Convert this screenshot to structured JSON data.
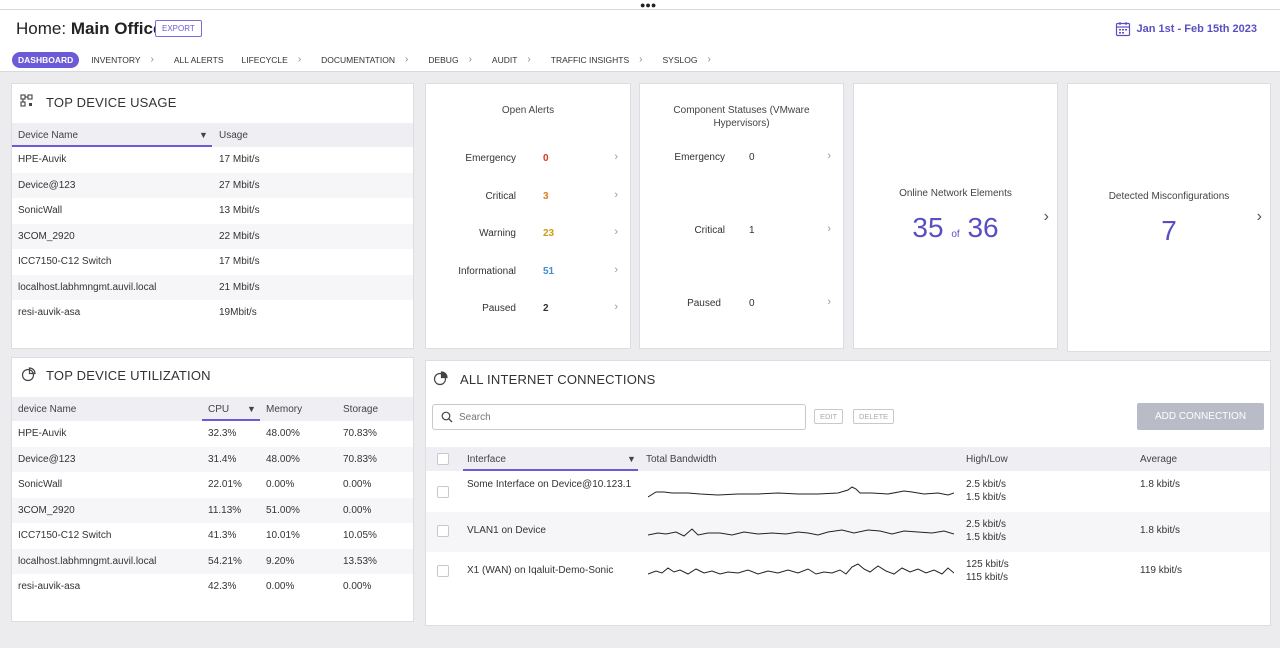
{
  "header": {
    "title_prefix": "Home:",
    "title_main": "Main Office",
    "export_label": "EXPORT",
    "date_range": "Jan 1st - Feb 15th 2023"
  },
  "nav": [
    {
      "label": "DASHBOARD",
      "active": true
    },
    {
      "label": "INVENTORY"
    },
    {
      "label": "ALL ALERTS"
    },
    {
      "label": "LIFECYCLE"
    },
    {
      "label": "DOCUMENTATION"
    },
    {
      "label": "DEBUG"
    },
    {
      "label": "AUDIT"
    },
    {
      "label": "TRAFFIC INSIGHTS"
    },
    {
      "label": "SYSLOG"
    }
  ],
  "top_device_usage": {
    "title": "TOP DEVICE USAGE",
    "col_device": "Device Name",
    "col_usage": "Usage",
    "rows": [
      {
        "device": "HPE-Auvik",
        "usage": "17 Mbit/s"
      },
      {
        "device": "Device@123",
        "usage": "27 Mbit/s"
      },
      {
        "device": "SonicWall",
        "usage": "13 Mbit/s"
      },
      {
        "device": "3COM_2920",
        "usage": "22 Mbit/s"
      },
      {
        "device": "ICC7150-C12 Switch",
        "usage": "17 Mbit/s"
      },
      {
        "device": "localhost.labhmngmt.auvil.local",
        "usage": "21 Mbit/s"
      },
      {
        "device": "resi-auvik-asa",
        "usage": "19Mbit/s"
      }
    ]
  },
  "top_device_utilization": {
    "title": "TOP DEVICE UTILIZATION",
    "col_device": "device Name",
    "col_cpu": "CPU",
    "col_memory": "Memory",
    "col_storage": "Storage",
    "rows": [
      {
        "device": "HPE-Auvik",
        "cpu": "32.3%",
        "memory": "48.00%",
        "storage": "70.83%"
      },
      {
        "device": "Device@123",
        "cpu": "31.4%",
        "memory": "48.00%",
        "storage": "70.83%"
      },
      {
        "device": "SonicWall",
        "cpu": "22.01%",
        "memory": "0.00%",
        "storage": "0.00%"
      },
      {
        "device": "3COM_2920",
        "cpu": "11.13%",
        "memory": "51.00%",
        "storage": "0.00%"
      },
      {
        "device": "ICC7150-C12 Switch",
        "cpu": "41.3%",
        "memory": "10.01%",
        "storage": "10.05%"
      },
      {
        "device": "localhost.labhmngmt.auvil.local",
        "cpu": "54.21%",
        "memory": "9.20%",
        "storage": "13.53%"
      },
      {
        "device": "resi-auvik-asa",
        "cpu": "42.3%",
        "memory": "0.00%",
        "storage": "0.00%"
      }
    ]
  },
  "open_alerts": {
    "title": "Open Alerts",
    "rows": [
      {
        "label": "Emergency",
        "value": "0",
        "color": "#d9361f"
      },
      {
        "label": "Critical",
        "value": "3",
        "color": "#e07a1a"
      },
      {
        "label": "Warning",
        "value": "23",
        "color": "#d19a12"
      },
      {
        "label": "Informational",
        "value": "51",
        "color": "#3d8fd6"
      },
      {
        "label": "Paused",
        "value": "2",
        "color": "#333333"
      }
    ]
  },
  "component_statuses": {
    "title": "Component Statuses (VMware Hypervisors)",
    "rows": [
      {
        "label": "Emergency",
        "value": "0"
      },
      {
        "label": "Critical",
        "value": "1"
      },
      {
        "label": "Paused",
        "value": "0"
      }
    ]
  },
  "online_elements": {
    "title": "Online Network Elements",
    "online": "35",
    "of_label": "of",
    "total": "36"
  },
  "misconfigurations": {
    "title": "Detected Misconfigurations",
    "count": "7"
  },
  "internet_connections": {
    "title": "ALL INTERNET CONNECTIONS",
    "search_placeholder": "Search",
    "edit_label": "EDIT",
    "delete_label": "DELETE",
    "add_label": "ADD CONNECTION",
    "col_interface": "Interface",
    "col_bandwidth": "Total Bandwidth",
    "col_highlow": "High/Low",
    "col_average": "Average",
    "rows": [
      {
        "interface": "Some Interface on Device@10.123.1",
        "high": "2.5 kbit/s",
        "low": "1.5 kbit/s",
        "average": "1.8 kbit/s"
      },
      {
        "interface": "VLAN1 on Device",
        "high": "2.5 kbit/s",
        "low": "1.5 kbit/s",
        "average": "1.8 kbit/s"
      },
      {
        "interface": "X1 (WAN) on Iqaluit-Demo-Sonic",
        "high": "125 kbit/s",
        "low": "115 kbit/s",
        "average": "119 kbit/s"
      }
    ]
  },
  "colors": {
    "accent": "#6b5bd6",
    "accent_text": "#5a4fc2"
  }
}
